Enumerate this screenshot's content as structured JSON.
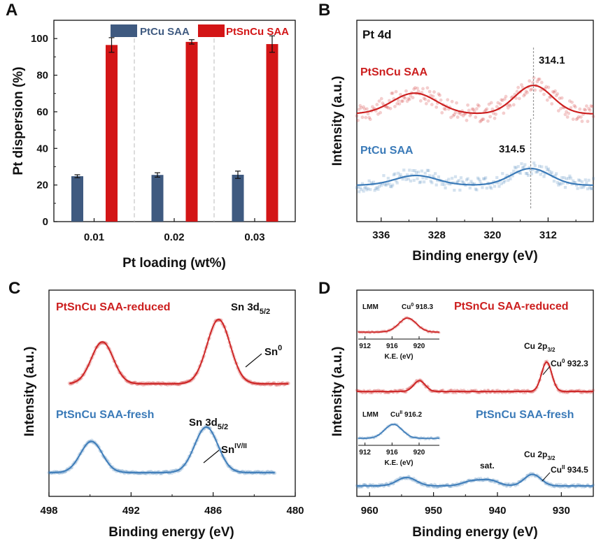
{
  "chart_data": [
    {
      "panel": "A",
      "type": "bar",
      "title": "",
      "xlabel": "Pt loading (wt%)",
      "ylabel": "Pt dispersion (%)",
      "categories": [
        "0.01",
        "0.02",
        "0.03"
      ],
      "series": [
        {
          "name": "PtCu SAA",
          "color": "#3f5a80",
          "values": [
            24.8,
            25.5,
            25.6
          ],
          "errors": [
            0.8,
            1.2,
            2.0
          ]
        },
        {
          "name": "PtSnCu SAA",
          "color": "#d31516",
          "values": [
            96.5,
            98.2,
            97.0
          ],
          "errors": [
            4.0,
            1.2,
            4.5
          ]
        }
      ],
      "ylim": [
        0,
        110
      ],
      "yticks": [
        0,
        20,
        40,
        60,
        80,
        100
      ],
      "legend": "top"
    },
    {
      "panel": "B",
      "type": "line",
      "title": "Pt 4d",
      "xlabel": "Binding energy (eV)",
      "ylabel": "Intensity (a.u.)",
      "xlim": [
        339.5,
        305.5
      ],
      "xticks": [
        336,
        328,
        320,
        312
      ],
      "series": [
        {
          "name": "PtSnCu SAA",
          "color": "#cc1f1f",
          "peaks": [
            {
              "center": 331.2,
              "height": 0.62,
              "width": 3.2
            },
            {
              "center": 314.1,
              "height": 0.85,
              "width": 2.7
            }
          ],
          "peak_label": "314.1"
        },
        {
          "name": "PtCu SAA",
          "color": "#3a7ab8",
          "peaks": [
            {
              "center": 331.0,
              "height": 0.35,
              "width": 3.0
            },
            {
              "center": 314.5,
              "height": 0.6,
              "width": 2.8
            }
          ],
          "peak_label": "314.5"
        }
      ]
    },
    {
      "panel": "C",
      "type": "line",
      "title": "",
      "xlabel": "Binding energy (eV)",
      "ylabel": "Intensity (a.u.)",
      "xlim": [
        498,
        480
      ],
      "xticks": [
        498,
        492,
        486,
        480
      ],
      "series": [
        {
          "name": "PtSnCu SAA-reduced",
          "color": "#cc1f1f",
          "peaks": [
            {
              "center": 494.1,
              "height": 0.6,
              "width": 0.8
            },
            {
              "center": 485.6,
              "height": 0.92,
              "width": 0.85
            }
          ],
          "annotations": [
            "Sn 3d5/2",
            "Sn0"
          ]
        },
        {
          "name": "PtSnCu SAA-fresh",
          "color": "#3a7ab8",
          "peaks": [
            {
              "center": 494.9,
              "height": 0.48,
              "width": 0.8
            },
            {
              "center": 486.5,
              "height": 0.7,
              "width": 0.85
            }
          ],
          "annotations": [
            "Sn 3d5/2",
            "SnIV/II"
          ]
        }
      ]
    },
    {
      "panel": "D",
      "type": "line",
      "title": "",
      "xlabel": "Binding energy (eV)",
      "ylabel": "Intensity (a.u.)",
      "xlim": [
        962,
        925
      ],
      "xticks": [
        960,
        950,
        940,
        930
      ],
      "series": [
        {
          "name": "PtSnCu SAA-reduced",
          "color": "#cc1f1f",
          "peaks": [
            {
              "center": 952.2,
              "height": 0.22,
              "width": 0.9
            },
            {
              "center": 932.3,
              "height": 0.6,
              "width": 0.8
            }
          ],
          "annotations": [
            "Cu 2p3/2",
            "Cu0 932.3"
          ]
        },
        {
          "name": "PtSnCu SAA-fresh",
          "color": "#3a7ab8",
          "peaks": [
            {
              "center": 954.2,
              "height": 0.22,
              "width": 1.5
            },
            {
              "center": 944.0,
              "height": 0.12,
              "width": 1.5
            },
            {
              "center": 941.2,
              "height": 0.14,
              "width": 1.4
            },
            {
              "center": 934.5,
              "height": 0.3,
              "width": 1.3
            }
          ],
          "annotations": [
            "Cu 2p3/2",
            "sat.",
            "CuII 934.5"
          ]
        }
      ],
      "insets": [
        {
          "series": "PtSnCu SAA-reduced",
          "label": "LMM",
          "peak_label": "Cu0 918.3",
          "xlabel": "K.E. (eV)",
          "xlim": [
            911,
            923
          ],
          "xticks": [
            912,
            916,
            920
          ],
          "peak_center": 918.3
        },
        {
          "series": "PtSnCu SAA-fresh",
          "label": "LMM",
          "peak_label": "CuII 916.2",
          "xlabel": "K.E. (eV)",
          "xlim": [
            911,
            923
          ],
          "xticks": [
            912,
            916,
            920
          ],
          "peak_center": 916.2
        }
      ]
    }
  ],
  "labels": {
    "panel_a": "A",
    "panel_b": "B",
    "panel_c": "C",
    "panel_d": "D",
    "legend_ptcu": "PtCu SAA",
    "legend_ptsncu": "PtSnCu SAA",
    "a_xlabel": "Pt loading (wt%)",
    "a_ylabel": "Pt dispersion (%)",
    "b_title": "Pt 4d",
    "b_ptsncu": "PtSnCu SAA",
    "b_ptcu": "PtCu SAA",
    "b_peak1": "314.1",
    "b_peak2": "314.5",
    "b_xlabel": "Binding energy (eV)",
    "b_ylabel": "Intensity (a.u.)",
    "c_reduced": "PtSnCu SAA-reduced",
    "c_fresh": "PtSnCu SAA-fresh",
    "c_sn_main": "Sn 3d",
    "c_sn_sub": "5/2",
    "c_sn0": "Sn",
    "c_sn0_sup": "0",
    "c_sniv": "Sn",
    "c_sniv_sup": "IV/II",
    "c_xlabel": "Binding energy (eV)",
    "c_ylabel": "Intensity (a.u.)",
    "d_reduced": "PtSnCu SAA-reduced",
    "d_fresh": "PtSnCu SAA-fresh",
    "d_cu2p_main": "Cu 2p",
    "d_cu2p_sub": "3/2",
    "d_cu0_main": "Cu",
    "d_cu0_sup": "0",
    "d_cu0_val": " 932.3",
    "d_cuii_main": "Cu",
    "d_cuii_sup": "II",
    "d_cuii_val": " 934.5",
    "d_sat": "sat.",
    "d_lmm": "LMM",
    "d_in1_peak_main": "Cu",
    "d_in1_peak_sup": "0",
    "d_in1_peak_val": " 918.3",
    "d_in2_peak_main": "Cu",
    "d_in2_peak_sup": "II",
    "d_in2_peak_val": " 916.2",
    "d_inset_xlabel": "K.E. (eV)",
    "d_xlabel": "Binding energy (eV)",
    "d_ylabel": "Intensity (a.u.)"
  }
}
